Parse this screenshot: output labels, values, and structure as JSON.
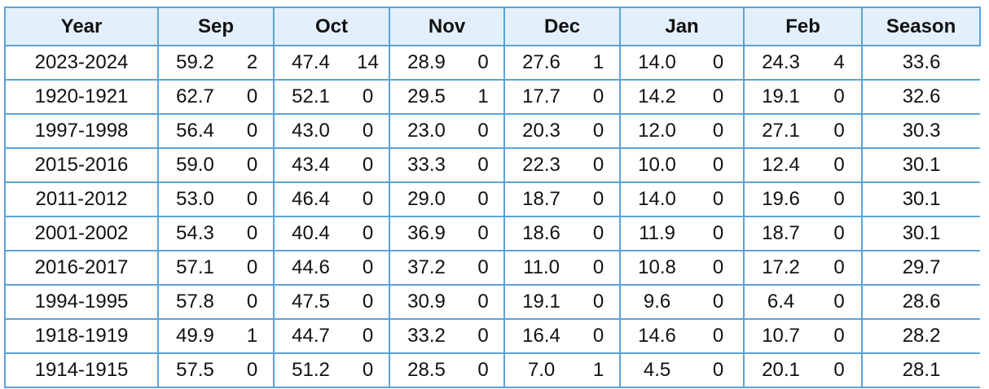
{
  "table": {
    "header": [
      "Year",
      "Sep",
      "Oct",
      "Nov",
      "Dec",
      "Jan",
      "Feb",
      "Season"
    ],
    "rows": [
      [
        "2023-2024",
        "59.2",
        "2",
        "47.4",
        "14",
        "28.9",
        "0",
        "27.6",
        "1",
        "14.0",
        "0",
        "24.3",
        "4",
        "33.6"
      ],
      [
        "1920-1921",
        "62.7",
        "0",
        "52.1",
        "0",
        "29.5",
        "1",
        "17.7",
        "0",
        "14.2",
        "0",
        "19.1",
        "0",
        "32.6"
      ],
      [
        "1997-1998",
        "56.4",
        "0",
        "43.0",
        "0",
        "23.0",
        "0",
        "20.3",
        "0",
        "12.0",
        "0",
        "27.1",
        "0",
        "30.3"
      ],
      [
        "2015-2016",
        "59.0",
        "0",
        "43.4",
        "0",
        "33.3",
        "0",
        "22.3",
        "0",
        "10.0",
        "0",
        "12.4",
        "0",
        "30.1"
      ],
      [
        "2011-2012",
        "53.0",
        "0",
        "46.4",
        "0",
        "29.0",
        "0",
        "18.7",
        "0",
        "14.0",
        "0",
        "19.6",
        "0",
        "30.1"
      ],
      [
        "2001-2002",
        "54.3",
        "0",
        "40.4",
        "0",
        "36.9",
        "0",
        "18.6",
        "0",
        "11.9",
        "0",
        "18.7",
        "0",
        "30.1"
      ],
      [
        "2016-2017",
        "57.1",
        "0",
        "44.6",
        "0",
        "37.2",
        "0",
        "11.0",
        "0",
        "10.8",
        "0",
        "17.2",
        "0",
        "29.7"
      ],
      [
        "1994-1995",
        "57.8",
        "0",
        "47.5",
        "0",
        "30.9",
        "0",
        "19.1",
        "0",
        "9.6",
        "0",
        "6.4",
        "0",
        "28.6"
      ],
      [
        "1918-1919",
        "49.9",
        "1",
        "44.7",
        "0",
        "33.2",
        "0",
        "16.4",
        "0",
        "14.6",
        "0",
        "10.7",
        "0",
        "28.2"
      ],
      [
        "1914-1915",
        "57.5",
        "0",
        "51.2",
        "0",
        "28.5",
        "0",
        "7.0",
        "1",
        "4.5",
        "0",
        "20.1",
        "0",
        "28.1"
      ]
    ]
  }
}
